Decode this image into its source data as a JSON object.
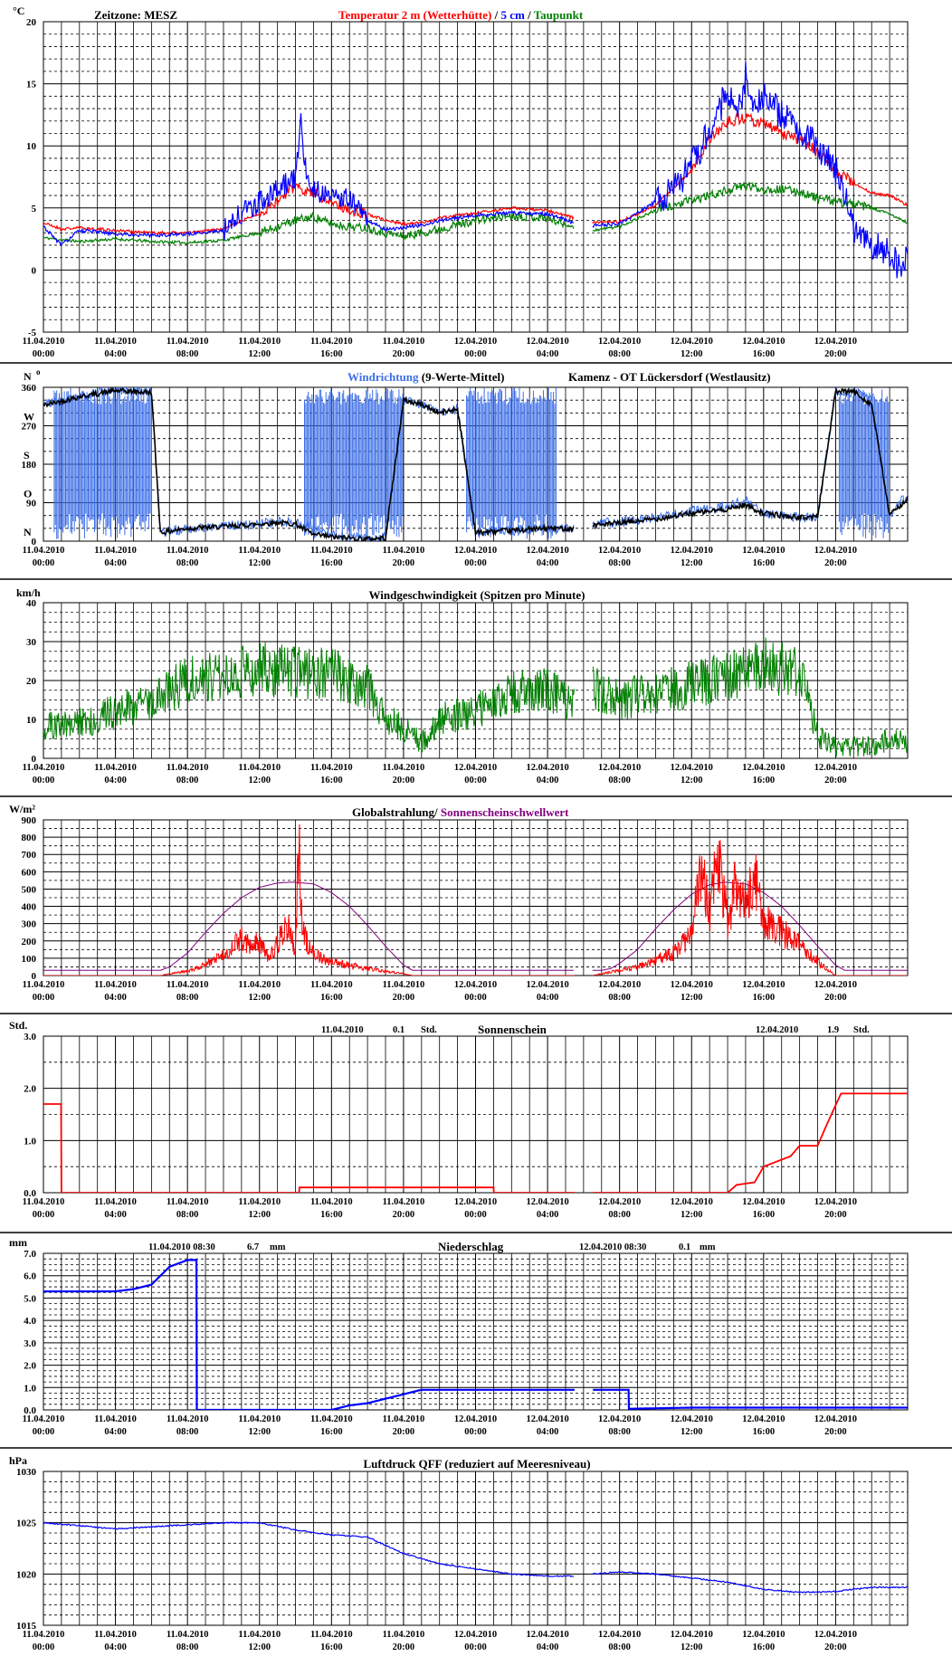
{
  "common": {
    "x_ticks": [
      [
        "11.04.2010",
        "00:00"
      ],
      [
        "11.04.2010",
        "04:00"
      ],
      [
        "11.04.2010",
        "08:00"
      ],
      [
        "11.04.2010",
        "12:00"
      ],
      [
        "11.04.2010",
        "16:00"
      ],
      [
        "11.04.2010",
        "20:00"
      ],
      [
        "12.04.2010",
        "00:00"
      ],
      [
        "12.04.2010",
        "04:00"
      ],
      [
        "12.04.2010",
        "08:00"
      ],
      [
        "12.04.2010",
        "12:00"
      ],
      [
        "12.04.2010",
        "16:00"
      ],
      [
        "12.04.2010",
        "20:00"
      ]
    ],
    "x_range_hours": [
      0,
      48
    ],
    "data_gap_hours": [
      29.5,
      30.5
    ]
  },
  "panels": {
    "temp": {
      "unit": "°C",
      "zone_label": "Zeitzone: MESZ",
      "title_parts": [
        {
          "text": "Temperatur 2 m (Wetterhütte)",
          "color": "#ff0000"
        },
        {
          "text": "  /  ",
          "color": "#000000"
        },
        {
          "text": "5 cm",
          "color": "#0000ff"
        },
        {
          "text": " / ",
          "color": "#000000"
        },
        {
          "text": "Taupunkt",
          "color": "#008000"
        }
      ],
      "y_ticks": [
        "20",
        "15",
        "10",
        "5",
        "0",
        "-5"
      ]
    },
    "wind_dir": {
      "unit": "N",
      "unit_sup": "o",
      "title_a": "Windrichtung",
      "title_b": " (9-Werte-Mittel)",
      "location": "Kamenz - OT Lückersdorf (Westlausitz)",
      "y_ticks": [
        "360",
        "270",
        "180",
        "90",
        "0"
      ],
      "compass": [
        "W",
        "S",
        "O",
        "N"
      ]
    },
    "wind_speed": {
      "unit": "km/h",
      "title": "Windgeschwindigkeit (Spitzen pro Minute)",
      "y_ticks": [
        "40",
        "30",
        "20",
        "10",
        "0"
      ]
    },
    "radiation": {
      "unit": "W/m²",
      "title_a": "Globalstrahlung/",
      "title_b": " Sonnenscheinschwellwert",
      "y_ticks": [
        "900",
        "800",
        "700",
        "600",
        "500",
        "400",
        "300",
        "200",
        "100",
        "0"
      ]
    },
    "sunshine": {
      "unit": "Std.",
      "title": "Sonnenschein",
      "day1_date": "11.04.2010",
      "day1_value": "0.1",
      "day1_unit": "Std.",
      "day2_date": "12.04.2010",
      "day2_value": "1.9",
      "day2_unit": "Std.",
      "y_ticks": [
        "3.0",
        "2.0",
        "1.0",
        "0.0"
      ]
    },
    "precip": {
      "unit": "mm",
      "title": "Niederschlag",
      "day1_date": "11.04.2010 08:30",
      "day1_value": "6.7",
      "day1_unit": "mm",
      "day2_date": "12.04.2010 08:30",
      "day2_value": "0.1",
      "day2_unit": "mm",
      "y_ticks": [
        "7.0",
        "6.0",
        "5.0",
        "4.0",
        "3.0",
        "2.0",
        "1.0",
        "0.0"
      ]
    },
    "pressure": {
      "unit": "hPa",
      "title": "Luftdruck QFF (reduziert auf Meeresniveau)",
      "y_ticks": [
        "1030",
        "1025",
        "1020",
        "1015"
      ]
    }
  },
  "chart_data": [
    {
      "type": "line",
      "title": "Temperatur 2 m (Wetterhütte) / 5 cm / Taupunkt",
      "ylabel": "°C",
      "ylim": [
        -5,
        20
      ],
      "x_unit": "hours since 11.04.2010 00:00",
      "series": [
        {
          "name": "Temperatur 2 m (Wetterhütte)",
          "color": "#ff0000",
          "x": [
            0,
            1,
            2,
            4,
            6,
            8,
            10,
            12,
            13,
            14,
            15,
            16,
            17,
            18,
            19,
            20,
            21,
            22,
            24,
            26,
            28,
            29.5,
            30.5,
            32,
            34,
            36,
            37,
            38,
            39,
            40,
            41,
            42,
            43,
            44,
            45,
            46,
            47,
            48
          ],
          "y": [
            3.8,
            3.3,
            3.4,
            3.2,
            3.0,
            3.0,
            3.3,
            4.6,
            5.5,
            6.8,
            6.2,
            5.5,
            4.8,
            4.5,
            4.0,
            3.7,
            3.8,
            4.2,
            4.6,
            5.0,
            4.8,
            4.2,
            3.8,
            3.9,
            5.2,
            8.0,
            10.5,
            12.0,
            12.2,
            11.8,
            11.0,
            10.5,
            9.5,
            8.0,
            7.0,
            6.2,
            6.0,
            5.2
          ]
        },
        {
          "name": "5 cm",
          "color": "#0000ff",
          "x": [
            0,
            1,
            2,
            4,
            6,
            8,
            10,
            11,
            12,
            13,
            14,
            14.3,
            14.6,
            15,
            16,
            17,
            18,
            19,
            20,
            21,
            22,
            24,
            26,
            28,
            29.5,
            30.5,
            32,
            34,
            35,
            36,
            37,
            38,
            38.5,
            39,
            39.5,
            40,
            41,
            42,
            43,
            44,
            45,
            46,
            47,
            47.5,
            48
          ],
          "y": [
            3.5,
            2.0,
            3.2,
            2.9,
            2.8,
            2.9,
            3.2,
            4.6,
            5.5,
            6.5,
            7.5,
            12.0,
            7.5,
            6.5,
            6.0,
            5.8,
            4.0,
            3.3,
            3.4,
            3.6,
            4.0,
            4.4,
            4.6,
            4.5,
            3.8,
            3.6,
            3.7,
            5.5,
            6.5,
            8.5,
            11.0,
            14.5,
            12.0,
            15.5,
            13.0,
            14.0,
            12.5,
            11.0,
            10.0,
            8.0,
            3.5,
            2.0,
            1.2,
            0.2,
            1.0
          ]
        },
        {
          "name": "Taupunkt",
          "color": "#008000",
          "x": [
            0,
            2,
            4,
            6,
            8,
            10,
            12,
            13,
            14,
            15,
            16,
            17,
            18,
            19,
            20,
            21,
            22,
            24,
            26,
            28,
            29.5,
            30.5,
            32,
            34,
            36,
            38,
            39,
            40,
            41,
            42,
            43,
            44,
            45,
            46,
            47,
            48
          ],
          "y": [
            2.6,
            2.3,
            2.5,
            2.3,
            2.2,
            2.4,
            3.0,
            3.5,
            4.0,
            4.3,
            3.7,
            3.5,
            3.4,
            3.0,
            2.7,
            3.0,
            3.3,
            4.0,
            4.4,
            4.2,
            3.4,
            3.2,
            3.5,
            4.8,
            5.6,
            6.4,
            6.8,
            6.5,
            6.5,
            6.3,
            5.8,
            5.5,
            5.3,
            5.0,
            4.5,
            3.8
          ]
        }
      ]
    },
    {
      "type": "line",
      "title": "Windrichtung (9-Werte-Mittel)",
      "ylabel": "°",
      "ylim": [
        0,
        360
      ],
      "x_unit": "hours since 11.04.2010 00:00",
      "oscillation_bands_hours": [
        [
          0.6,
          6
        ],
        [
          14.5,
          20
        ],
        [
          23.5,
          28.5
        ],
        [
          44.2,
          47
        ]
      ],
      "series": [
        {
          "name": "Windrichtung",
          "color": "#3c6ee8",
          "x": [
            0,
            2,
            4,
            6,
            6.5,
            8,
            10,
            12,
            13,
            14,
            15,
            16,
            18,
            19,
            20,
            21,
            22,
            23,
            24,
            26,
            28,
            29.5,
            30.5,
            32,
            34,
            36,
            38,
            39,
            40,
            41,
            42,
            43,
            44,
            45,
            46,
            47,
            48
          ],
          "y": [
            320,
            340,
            355,
            350,
            20,
            30,
            35,
            40,
            45,
            45,
            30,
            15,
            5,
            10,
            330,
            320,
            300,
            310,
            20,
            25,
            30,
            30,
            40,
            45,
            55,
            70,
            80,
            95,
            65,
            60,
            55,
            60,
            350,
            350,
            330,
            60,
            110
          ]
        },
        {
          "name": "Mittel",
          "color": "#000000",
          "x": [
            0,
            2,
            4,
            6,
            6.5,
            8,
            10,
            12,
            13,
            14,
            15,
            16,
            18,
            19,
            20,
            21,
            22,
            23,
            24,
            26,
            28,
            29.5,
            30.5,
            32,
            34,
            36,
            38,
            39,
            40,
            41,
            42,
            43,
            44,
            45,
            46,
            47,
            48
          ],
          "y": [
            318,
            338,
            352,
            348,
            20,
            30,
            34,
            40,
            44,
            40,
            15,
            10,
            5,
            8,
            330,
            320,
            300,
            310,
            20,
            25,
            30,
            30,
            38,
            42,
            52,
            65,
            75,
            85,
            65,
            60,
            55,
            58,
            350,
            350,
            320,
            60,
            100
          ]
        }
      ]
    },
    {
      "type": "line",
      "title": "Windgeschwindigkeit (Spitzen pro Minute)",
      "ylabel": "km/h",
      "ylim": [
        0,
        40
      ],
      "x_unit": "hours since 11.04.2010 00:00",
      "series": [
        {
          "name": "Windgeschwindigkeit",
          "color": "#008000",
          "x": [
            0,
            2,
            4,
            6,
            8,
            10,
            12,
            14,
            16,
            18,
            19,
            20,
            21,
            22,
            24,
            26,
            28,
            29.5,
            30.5,
            32,
            34,
            36,
            38,
            40,
            42,
            42.5,
            43,
            44,
            46,
            47,
            48
          ],
          "y": [
            8,
            9,
            12,
            15,
            20,
            22,
            23,
            22,
            22,
            18,
            10,
            8,
            4,
            10,
            12,
            17,
            18,
            13,
            18,
            15,
            17,
            19,
            21,
            24,
            22,
            15,
            6,
            3,
            3,
            5,
            4
          ]
        }
      ]
    },
    {
      "type": "line",
      "title": "Globalstrahlung/ Sonnenscheinschwellwert",
      "ylabel": "W/m²",
      "ylim": [
        0,
        900
      ],
      "x_unit": "hours since 11.04.2010 00:00",
      "series": [
        {
          "name": "Globalstrahlung",
          "color": "#ff0000",
          "x": [
            0,
            6.5,
            7,
            8,
            9,
            10,
            11,
            11.5,
            12,
            12.5,
            13,
            13.5,
            14,
            14.2,
            14.4,
            14.6,
            15,
            16,
            17,
            18,
            19,
            20,
            20.5,
            29.5,
            30.5,
            31,
            32,
            33,
            34,
            35,
            36,
            36.5,
            37,
            37.5,
            38,
            38.5,
            39,
            39.5,
            40,
            41,
            42,
            43,
            43.5,
            44,
            48
          ],
          "y": [
            0,
            0,
            10,
            25,
            60,
            120,
            220,
            160,
            200,
            100,
            180,
            300,
            150,
            850,
            250,
            200,
            120,
            80,
            60,
            40,
            25,
            10,
            0,
            0,
            0,
            10,
            30,
            50,
            90,
            130,
            230,
            600,
            380,
            700,
            300,
            550,
            400,
            600,
            330,
            250,
            180,
            80,
            40,
            0,
            0
          ]
        },
        {
          "name": "Sonnenscheinschwellwert",
          "color": "#800080",
          "x": [
            0,
            6.5,
            7,
            8,
            9,
            10,
            11,
            12,
            13,
            13.8,
            15,
            16,
            17,
            18,
            19,
            20,
            20.5,
            21,
            29.5,
            30.5,
            31,
            31.5,
            32,
            33,
            34,
            35,
            36,
            37,
            37.8,
            39,
            40,
            41,
            42,
            43,
            44,
            44.5,
            45,
            48
          ],
          "y": [
            30,
            30,
            50,
            130,
            250,
            360,
            450,
            510,
            535,
            540,
            530,
            480,
            400,
            290,
            170,
            60,
            30,
            30,
            30,
            30,
            30,
            40,
            70,
            150,
            270,
            380,
            470,
            525,
            540,
            530,
            480,
            400,
            290,
            170,
            60,
            30,
            30,
            30
          ]
        }
      ]
    },
    {
      "type": "line",
      "title": "Sonnenschein",
      "ylabel": "Std.",
      "ylim": [
        0,
        3
      ],
      "x_unit": "hours since 11.04.2010 00:00",
      "series": [
        {
          "name": "Sonnenschein",
          "color": "#ff0000",
          "x": [
            0,
            1,
            1,
            14.2,
            14.2,
            25,
            25,
            38,
            38.5,
            39.5,
            40,
            41.5,
            42,
            43,
            43.5,
            44.3,
            48
          ],
          "y": [
            1.7,
            1.7,
            0,
            0,
            0.1,
            0.1,
            0,
            0,
            0.15,
            0.2,
            0.5,
            0.7,
            0.9,
            0.9,
            1.3,
            1.9,
            1.9
          ]
        }
      ]
    },
    {
      "type": "line",
      "title": "Niederschlag",
      "ylabel": "mm",
      "ylim": [
        0,
        7
      ],
      "x_unit": "hours since 11.04.2010 00:00",
      "series": [
        {
          "name": "Niederschlag",
          "color": "#0000ff",
          "x": [
            0,
            4,
            5,
            6,
            7,
            8,
            8.5,
            8.5,
            16,
            17,
            18,
            19,
            20,
            21,
            29.5,
            30.5,
            32.5,
            32.5,
            36,
            48
          ],
          "y": [
            5.3,
            5.3,
            5.4,
            5.6,
            6.4,
            6.7,
            6.7,
            0,
            0,
            0.2,
            0.3,
            0.5,
            0.7,
            0.9,
            0.9,
            0.9,
            0.9,
            0.05,
            0.1,
            0.1
          ]
        }
      ]
    },
    {
      "type": "line",
      "title": "Luftdruck QFF (reduziert auf Meeresniveau)",
      "ylabel": "hPa",
      "ylim": [
        1015,
        1030
      ],
      "x_unit": "hours since 11.04.2010 00:00",
      "series": [
        {
          "name": "Luftdruck QFF",
          "color": "#0000ff",
          "x": [
            0,
            2,
            4,
            6,
            8,
            10,
            12,
            14,
            16,
            18,
            19,
            20,
            22,
            24,
            26,
            28,
            29.5,
            30.5,
            32,
            34,
            36,
            38,
            40,
            42,
            44,
            46,
            48
          ],
          "y": [
            1025.0,
            1024.7,
            1024.4,
            1024.6,
            1024.8,
            1025.0,
            1025.0,
            1024.3,
            1023.8,
            1023.6,
            1022.8,
            1022.0,
            1021.0,
            1020.5,
            1020.0,
            1019.8,
            1019.8,
            1020.0,
            1020.2,
            1020.0,
            1019.6,
            1019.2,
            1018.5,
            1018.2,
            1018.3,
            1018.7,
            1018.7
          ]
        }
      ]
    }
  ]
}
